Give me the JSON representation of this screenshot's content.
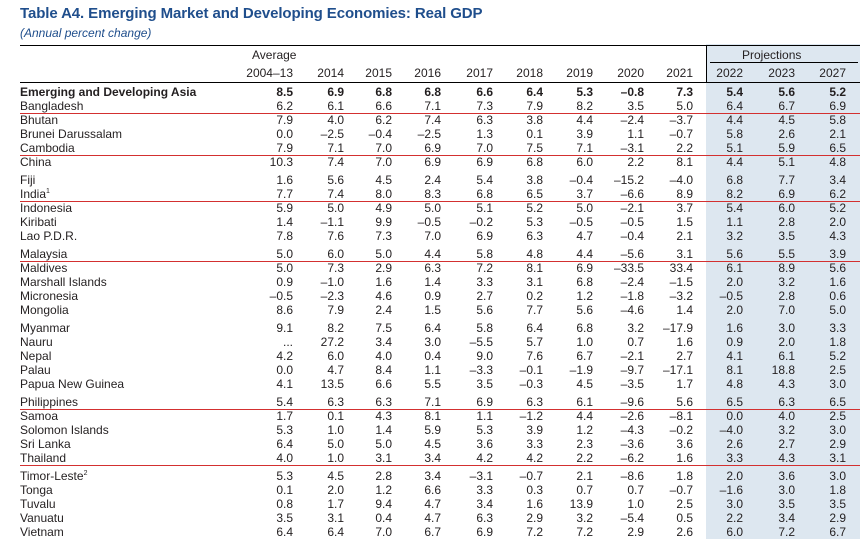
{
  "table": {
    "title": "Table A4. Emerging Market and Developing Economies: Real GDP",
    "subtitle": "(Annual percent change)",
    "average_label": "Average",
    "projections_label": "Projections",
    "columns": [
      "2004–13",
      "2014",
      "2015",
      "2016",
      "2017",
      "2018",
      "2019",
      "2020",
      "2021",
      "2022",
      "2023",
      "2027"
    ],
    "rows": [
      {
        "name": "Emerging and Developing Asia",
        "bold": true,
        "values": [
          "8.5",
          "6.9",
          "6.8",
          "6.8",
          "6.6",
          "6.4",
          "5.3",
          "–0.8",
          "7.3",
          "5.4",
          "5.6",
          "5.2"
        ]
      },
      {
        "name": "Bangladesh",
        "values": [
          "6.2",
          "6.1",
          "6.6",
          "7.1",
          "7.3",
          "7.9",
          "8.2",
          "3.5",
          "5.0",
          "6.4",
          "6.7",
          "6.9"
        ]
      },
      {
        "name": "Bhutan",
        "values": [
          "7.9",
          "4.0",
          "6.2",
          "7.4",
          "6.3",
          "3.8",
          "4.4",
          "–2.4",
          "–3.7",
          "4.4",
          "4.5",
          "5.8"
        ]
      },
      {
        "name": "Brunei Darussalam",
        "values": [
          "0.0",
          "–2.5",
          "–0.4",
          "–2.5",
          "1.3",
          "0.1",
          "3.9",
          "1.1",
          "–0.7",
          "5.8",
          "2.6",
          "2.1"
        ]
      },
      {
        "name": "Cambodia",
        "values": [
          "7.9",
          "7.1",
          "7.0",
          "6.9",
          "7.0",
          "7.5",
          "7.1",
          "–3.1",
          "2.2",
          "5.1",
          "5.9",
          "6.5"
        ]
      },
      {
        "name": "China",
        "values": [
          "10.3",
          "7.4",
          "7.0",
          "6.9",
          "6.9",
          "6.8",
          "6.0",
          "2.2",
          "8.1",
          "4.4",
          "5.1",
          "4.8"
        ]
      },
      {
        "name": "Fiji",
        "values": [
          "1.6",
          "5.6",
          "4.5",
          "2.4",
          "5.4",
          "3.8",
          "–0.4",
          "–15.2",
          "–4.0",
          "6.8",
          "7.7",
          "3.4"
        ]
      },
      {
        "name": "India",
        "sup": "1",
        "values": [
          "7.7",
          "7.4",
          "8.0",
          "8.3",
          "6.8",
          "6.5",
          "3.7",
          "–6.6",
          "8.9",
          "8.2",
          "6.9",
          "6.2"
        ]
      },
      {
        "name": "Indonesia",
        "values": [
          "5.9",
          "5.0",
          "4.9",
          "5.0",
          "5.1",
          "5.2",
          "5.0",
          "–2.1",
          "3.7",
          "5.4",
          "6.0",
          "5.2"
        ]
      },
      {
        "name": "Kiribati",
        "values": [
          "1.4",
          "–1.1",
          "9.9",
          "–0.5",
          "–0.2",
          "5.3",
          "–0.5",
          "–0.5",
          "1.5",
          "1.1",
          "2.8",
          "2.0"
        ]
      },
      {
        "name": "Lao P.D.R.",
        "values": [
          "7.8",
          "7.6",
          "7.3",
          "7.0",
          "6.9",
          "6.3",
          "4.7",
          "–0.4",
          "2.1",
          "3.2",
          "3.5",
          "4.3"
        ]
      },
      {
        "name": "Malaysia",
        "values": [
          "5.0",
          "6.0",
          "5.0",
          "4.4",
          "5.8",
          "4.8",
          "4.4",
          "–5.6",
          "3.1",
          "5.6",
          "5.5",
          "3.9"
        ]
      },
      {
        "name": "Maldives",
        "values": [
          "5.0",
          "7.3",
          "2.9",
          "6.3",
          "7.2",
          "8.1",
          "6.9",
          "–33.5",
          "33.4",
          "6.1",
          "8.9",
          "5.6"
        ]
      },
      {
        "name": "Marshall Islands",
        "values": [
          "0.9",
          "–1.0",
          "1.6",
          "1.4",
          "3.3",
          "3.1",
          "6.8",
          "–2.4",
          "–1.5",
          "2.0",
          "3.2",
          "1.6"
        ]
      },
      {
        "name": "Micronesia",
        "values": [
          "–0.5",
          "–2.3",
          "4.6",
          "0.9",
          "2.7",
          "0.2",
          "1.2",
          "–1.8",
          "–3.2",
          "–0.5",
          "2.8",
          "0.6"
        ]
      },
      {
        "name": "Mongolia",
        "values": [
          "8.6",
          "7.9",
          "2.4",
          "1.5",
          "5.6",
          "7.7",
          "5.6",
          "–4.6",
          "1.4",
          "2.0",
          "7.0",
          "5.0"
        ]
      },
      {
        "name": "Myanmar",
        "values": [
          "9.1",
          "8.2",
          "7.5",
          "6.4",
          "5.8",
          "6.4",
          "6.8",
          "3.2",
          "–17.9",
          "1.6",
          "3.0",
          "3.3"
        ]
      },
      {
        "name": "Nauru",
        "values": [
          "...",
          "27.2",
          "3.4",
          "3.0",
          "–5.5",
          "5.7",
          "1.0",
          "0.7",
          "1.6",
          "0.9",
          "2.0",
          "1.8"
        ]
      },
      {
        "name": "Nepal",
        "values": [
          "4.2",
          "6.0",
          "4.0",
          "0.4",
          "9.0",
          "7.6",
          "6.7",
          "–2.1",
          "2.7",
          "4.1",
          "6.1",
          "5.2"
        ]
      },
      {
        "name": "Palau",
        "values": [
          "0.0",
          "4.7",
          "8.4",
          "1.1",
          "–3.3",
          "–0.1",
          "–1.9",
          "–9.7",
          "–17.1",
          "8.1",
          "18.8",
          "2.5"
        ]
      },
      {
        "name": "Papua New Guinea",
        "values": [
          "4.1",
          "13.5",
          "6.6",
          "5.5",
          "3.5",
          "–0.3",
          "4.5",
          "–3.5",
          "1.7",
          "4.8",
          "4.3",
          "3.0"
        ]
      },
      {
        "name": "Philippines",
        "values": [
          "5.4",
          "6.3",
          "6.3",
          "7.1",
          "6.9",
          "6.3",
          "6.1",
          "–9.6",
          "5.6",
          "6.5",
          "6.3",
          "6.5"
        ]
      },
      {
        "name": "Samoa",
        "values": [
          "1.7",
          "0.1",
          "4.3",
          "8.1",
          "1.1",
          "–1.2",
          "4.4",
          "–2.6",
          "–8.1",
          "0.0",
          "4.0",
          "2.5"
        ]
      },
      {
        "name": "Solomon Islands",
        "values": [
          "5.3",
          "1.0",
          "1.4",
          "5.9",
          "5.3",
          "3.9",
          "1.2",
          "–4.3",
          "–0.2",
          "–4.0",
          "3.2",
          "3.0"
        ]
      },
      {
        "name": "Sri Lanka",
        "values": [
          "6.4",
          "5.0",
          "5.0",
          "4.5",
          "3.6",
          "3.3",
          "2.3",
          "–3.6",
          "3.6",
          "2.6",
          "2.7",
          "2.9"
        ]
      },
      {
        "name": "Thailand",
        "values": [
          "4.0",
          "1.0",
          "3.1",
          "3.4",
          "4.2",
          "4.2",
          "2.2",
          "–6.2",
          "1.6",
          "3.3",
          "4.3",
          "3.1"
        ]
      },
      {
        "name": "Timor-Leste",
        "sup": "2",
        "values": [
          "5.3",
          "4.5",
          "2.8",
          "3.4",
          "–3.1",
          "–0.7",
          "2.1",
          "–8.6",
          "1.8",
          "2.0",
          "3.6",
          "3.0"
        ]
      },
      {
        "name": "Tonga",
        "values": [
          "0.1",
          "2.0",
          "1.2",
          "6.6",
          "3.3",
          "0.3",
          "0.7",
          "0.7",
          "–0.7",
          "–1.6",
          "3.0",
          "1.8"
        ]
      },
      {
        "name": "Tuvalu",
        "values": [
          "0.8",
          "1.7",
          "9.4",
          "4.7",
          "3.4",
          "1.6",
          "13.9",
          "1.0",
          "2.5",
          "3.0",
          "3.5",
          "3.5"
        ]
      },
      {
        "name": "Vanuatu",
        "values": [
          "3.5",
          "3.1",
          "0.4",
          "4.7",
          "6.3",
          "2.9",
          "3.2",
          "–5.4",
          "0.5",
          "2.2",
          "3.4",
          "2.9"
        ]
      },
      {
        "name": "Vietnam",
        "values": [
          "6.4",
          "6.4",
          "7.0",
          "6.7",
          "6.9",
          "7.2",
          "7.2",
          "2.9",
          "2.6",
          "6.0",
          "7.2",
          "6.7"
        ]
      }
    ]
  }
}
